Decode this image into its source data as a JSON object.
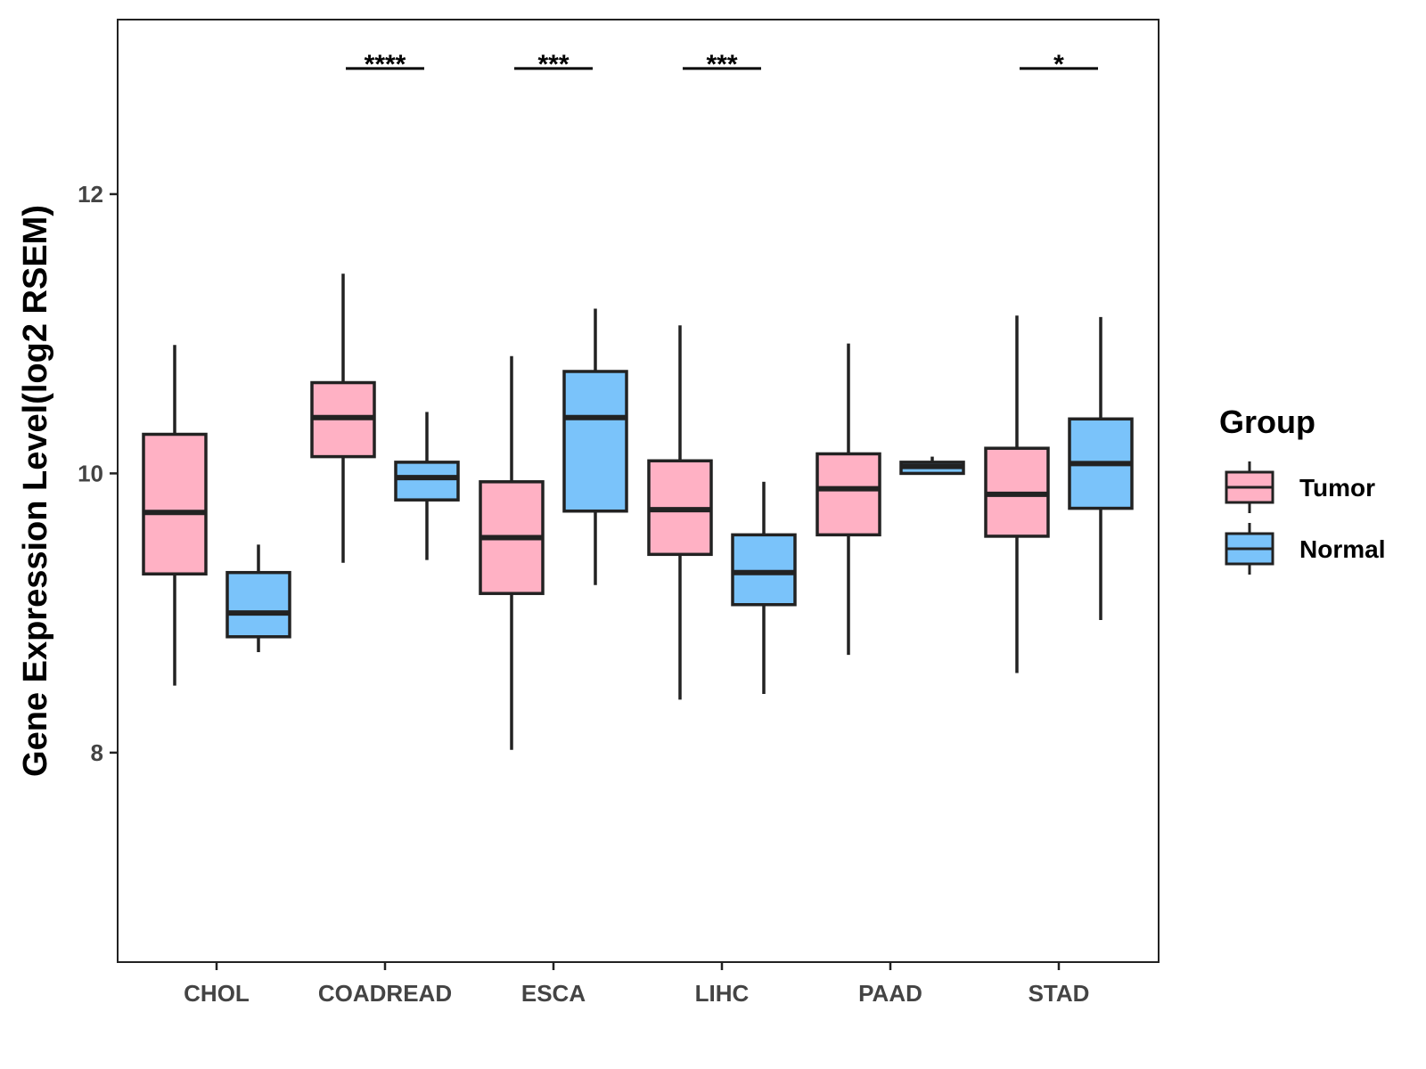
{
  "chart_data": {
    "type": "boxplot",
    "title": "",
    "xlabel": "",
    "ylabel": "Gene Expression Level(log2 RSEM)",
    "ylim": [
      6.5,
      13.25
    ],
    "yticks": [
      8,
      10,
      12
    ],
    "ytick_labels": [
      "8",
      "10",
      "12"
    ],
    "categories": [
      "CHOL",
      "COADREAD",
      "ESCA",
      "LIHC",
      "PAAD",
      "STAD"
    ],
    "legend": {
      "title": "Group",
      "position": "right",
      "entries": [
        "Tumor",
        "Normal"
      ]
    },
    "colors": {
      "Tumor": "#FFB1C4",
      "Normal": "#7AC3FA",
      "outline": "#222222"
    },
    "series": [
      {
        "name": "Tumor",
        "boxes": [
          {
            "category": "CHOL",
            "min": 8.48,
            "q1": 9.28,
            "median": 9.72,
            "q3": 10.28,
            "max": 10.92
          },
          {
            "category": "COADREAD",
            "min": 9.36,
            "q1": 10.12,
            "median": 10.4,
            "q3": 10.65,
            "max": 11.43
          },
          {
            "category": "ESCA",
            "min": 8.02,
            "q1": 9.14,
            "median": 9.54,
            "q3": 9.94,
            "max": 10.84
          },
          {
            "category": "LIHC",
            "min": 8.38,
            "q1": 9.42,
            "median": 9.74,
            "q3": 10.09,
            "max": 11.06
          },
          {
            "category": "PAAD",
            "min": 8.7,
            "q1": 9.56,
            "median": 9.89,
            "q3": 10.14,
            "max": 10.93
          },
          {
            "category": "STAD",
            "min": 8.57,
            "q1": 9.55,
            "median": 9.85,
            "q3": 10.18,
            "max": 11.13
          }
        ]
      },
      {
        "name": "Normal",
        "boxes": [
          {
            "category": "CHOL",
            "min": 8.72,
            "q1": 8.83,
            "median": 9.0,
            "q3": 9.29,
            "max": 9.49
          },
          {
            "category": "COADREAD",
            "min": 9.38,
            "q1": 9.81,
            "median": 9.97,
            "q3": 10.08,
            "max": 10.44
          },
          {
            "category": "ESCA",
            "min": 9.2,
            "q1": 9.73,
            "median": 10.4,
            "q3": 10.73,
            "max": 11.18
          },
          {
            "category": "LIHC",
            "min": 8.42,
            "q1": 9.06,
            "median": 9.29,
            "q3": 9.56,
            "max": 9.94
          },
          {
            "category": "PAAD",
            "min": 10.0,
            "q1": 10.0,
            "median": 10.05,
            "q3": 10.08,
            "max": 10.12
          },
          {
            "category": "STAD",
            "min": 8.95,
            "q1": 9.75,
            "median": 10.07,
            "q3": 10.39,
            "max": 11.12
          }
        ]
      }
    ],
    "significance": [
      {
        "category": "COADREAD",
        "label": "****"
      },
      {
        "category": "ESCA",
        "label": "***"
      },
      {
        "category": "LIHC",
        "label": "***"
      },
      {
        "category": "STAD",
        "label": "*"
      }
    ],
    "significance_y": 12.9
  }
}
